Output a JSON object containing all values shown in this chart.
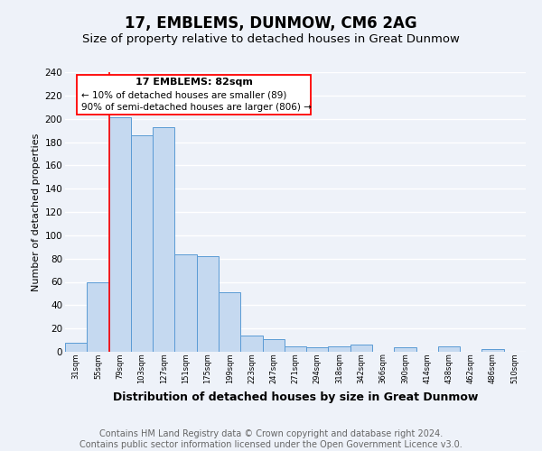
{
  "title": "17, EMBLEMS, DUNMOW, CM6 2AG",
  "subtitle": "Size of property relative to detached houses in Great Dunmow",
  "xlabel": "Distribution of detached houses by size in Great Dunmow",
  "ylabel": "Number of detached properties",
  "bar_labels": [
    "31sqm",
    "55sqm",
    "79sqm",
    "103sqm",
    "127sqm",
    "151sqm",
    "175sqm",
    "199sqm",
    "223sqm",
    "247sqm",
    "271sqm",
    "294sqm",
    "318sqm",
    "342sqm",
    "366sqm",
    "390sqm",
    "414sqm",
    "438sqm",
    "462sqm",
    "486sqm",
    "510sqm"
  ],
  "bar_values": [
    8,
    60,
    201,
    186,
    193,
    84,
    82,
    51,
    14,
    11,
    5,
    4,
    5,
    6,
    0,
    4,
    0,
    5,
    0,
    2,
    0
  ],
  "bar_color": "#c5d9f0",
  "bar_edge_color": "#5b9bd5",
  "ylim": [
    0,
    240
  ],
  "yticks": [
    0,
    20,
    40,
    60,
    80,
    100,
    120,
    140,
    160,
    180,
    200,
    220,
    240
  ],
  "red_line_x": 2,
  "annotation_text_line1": "17 EMBLEMS: 82sqm",
  "annotation_text_line2": "← 10% of detached houses are smaller (89)",
  "annotation_text_line3": "90% of semi-detached houses are larger (806) →",
  "footer_line1": "Contains HM Land Registry data © Crown copyright and database right 2024.",
  "footer_line2": "Contains public sector information licensed under the Open Government Licence v3.0.",
  "background_color": "#eef2f9",
  "grid_color": "#ffffff",
  "title_fontsize": 12,
  "subtitle_fontsize": 9.5,
  "xlabel_fontsize": 9,
  "ylabel_fontsize": 8,
  "footer_fontsize": 7,
  "annot_fontsize_title": 8,
  "annot_fontsize_body": 7.5
}
